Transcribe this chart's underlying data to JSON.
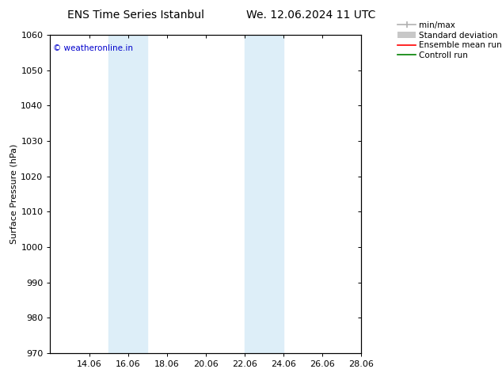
{
  "title_left": "ENS Time Series Istanbul",
  "title_right": "We. 12.06.2024 11 UTC",
  "ylabel": "Surface Pressure (hPa)",
  "ylim": [
    970,
    1060
  ],
  "yticks": [
    970,
    980,
    990,
    1000,
    1010,
    1020,
    1030,
    1040,
    1050,
    1060
  ],
  "xlim": [
    12,
    28
  ],
  "xtick_positions": [
    14,
    16,
    18,
    20,
    22,
    24,
    26,
    28
  ],
  "xtick_labels": [
    "14.06",
    "16.06",
    "18.06",
    "20.06",
    "22.06",
    "24.06",
    "26.06",
    "28.06"
  ],
  "shade_bands": [
    {
      "x_start": 15,
      "x_end": 17
    },
    {
      "x_start": 22,
      "x_end": 24
    }
  ],
  "shade_color": "#ddeef8",
  "watermark": "© weatheronline.in",
  "watermark_color": "#0000cc",
  "background_color": "#ffffff",
  "legend_entries": [
    {
      "label": "min/max",
      "color": "#b0b0b0",
      "lw": 1.2,
      "type": "minmax"
    },
    {
      "label": "Standard deviation",
      "color": "#c8c8c8",
      "lw": 5,
      "type": "band"
    },
    {
      "label": "Ensemble mean run",
      "color": "#ff0000",
      "lw": 1.2,
      "type": "line"
    },
    {
      "label": "Controll run",
      "color": "#008000",
      "lw": 1.2,
      "type": "line"
    }
  ],
  "title_fontsize": 10,
  "axis_fontsize": 8,
  "tick_fontsize": 8,
  "legend_fontsize": 7.5
}
